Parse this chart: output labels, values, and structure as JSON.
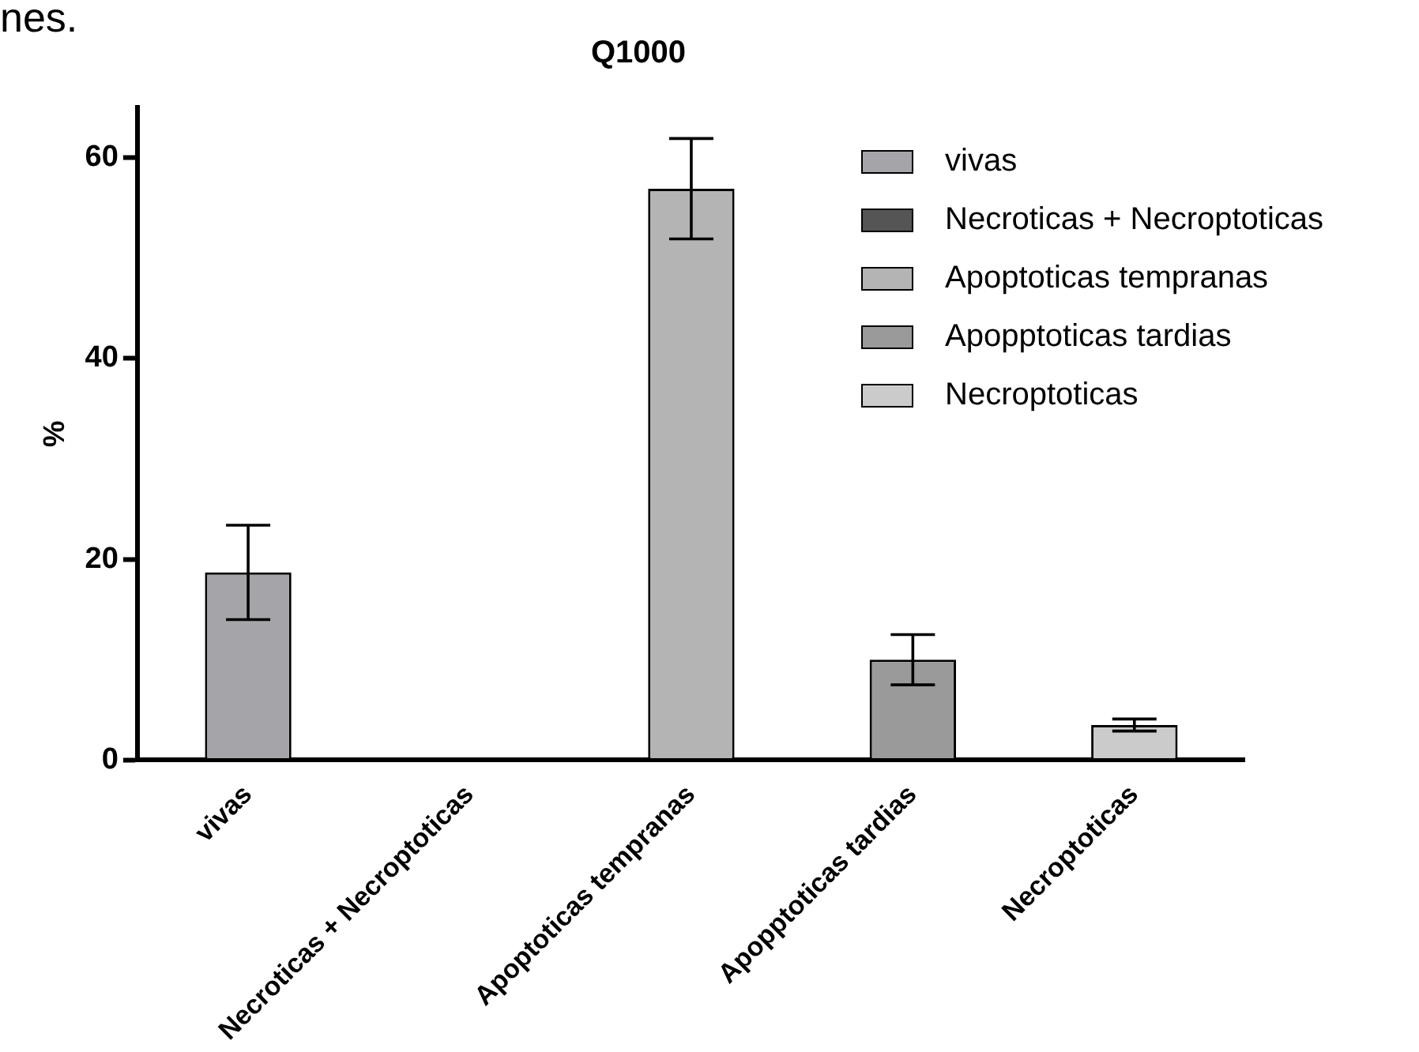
{
  "chart_data": {
    "type": "bar",
    "title": "Q1000",
    "ylabel": "%",
    "annotations": [
      "nes."
    ],
    "categories": [
      "vivas",
      "Necroticas + Necroptoticas",
      "Apoptoticas tempranas",
      "Apopptoticas tardias",
      "Necroptoticas"
    ],
    "series": [
      {
        "name": "vivas",
        "color": "#a5a5a9",
        "values": [
          18.7,
          null,
          null,
          null,
          null
        ],
        "errors": [
          4.7,
          null,
          null,
          null,
          null
        ]
      },
      {
        "name": "Necroticas + Necroptoticas",
        "color": "#555555",
        "values": [
          null,
          0,
          null,
          null,
          null
        ],
        "errors": [
          null,
          null,
          null,
          null,
          null
        ]
      },
      {
        "name": "Apoptoticas tempranas",
        "color": "#b4b4b4",
        "values": [
          null,
          null,
          56.9,
          null,
          null
        ],
        "errors": [
          null,
          null,
          5,
          null,
          null
        ]
      },
      {
        "name": "Apopptoticas tardias",
        "color": "#9a9a9a",
        "values": [
          null,
          null,
          null,
          10,
          null
        ],
        "errors": [
          null,
          null,
          null,
          2.5,
          null
        ]
      },
      {
        "name": "Necroptoticas",
        "color": "#cbcbcb",
        "values": [
          null,
          null,
          null,
          null,
          3.5
        ],
        "errors": [
          null,
          null,
          null,
          null,
          0.6
        ]
      }
    ],
    "ylim": [
      0,
      65
    ],
    "yticks": [
      0,
      20,
      40,
      60
    ],
    "grid": false,
    "legend": "top right"
  }
}
